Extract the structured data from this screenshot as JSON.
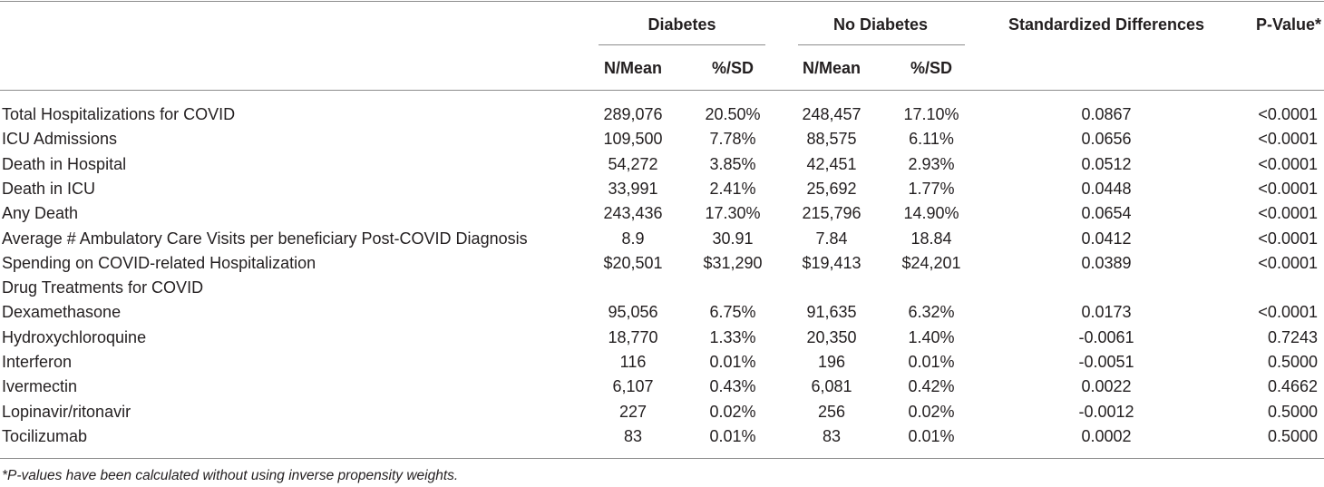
{
  "header": {
    "group_diabetes": "Diabetes",
    "group_no_diabetes": "No Diabetes",
    "std_diff": "Standardized Differences",
    "p_value": "P-Value*",
    "sub_n_mean": "N/Mean",
    "sub_pct_sd": "%/SD"
  },
  "rows": [
    {
      "label": "Total Hospitalizations for COVID",
      "d_n": "289,076",
      "d_pct": "20.50%",
      "nd_n": "248,457",
      "nd_pct": "17.10%",
      "std": "0.0867",
      "p": "<0.0001"
    },
    {
      "label": "ICU Admissions",
      "d_n": "109,500",
      "d_pct": "7.78%",
      "nd_n": "88,575",
      "nd_pct": "6.11%",
      "std": "0.0656",
      "p": "<0.0001"
    },
    {
      "label": "Death in Hospital",
      "d_n": "54,272",
      "d_pct": "3.85%",
      "nd_n": "42,451",
      "nd_pct": "2.93%",
      "std": "0.0512",
      "p": "<0.0001"
    },
    {
      "label": "Death in ICU",
      "d_n": "33,991",
      "d_pct": "2.41%",
      "nd_n": "25,692",
      "nd_pct": "1.77%",
      "std": "0.0448",
      "p": "<0.0001"
    },
    {
      "label": "Any Death",
      "d_n": "243,436",
      "d_pct": "17.30%",
      "nd_n": "215,796",
      "nd_pct": "14.90%",
      "std": "0.0654",
      "p": "<0.0001"
    },
    {
      "label": "Average # Ambulatory Care Visits per beneficiary Post-COVID Diagnosis",
      "d_n": "8.9",
      "d_pct": "30.91",
      "nd_n": "7.84",
      "nd_pct": "18.84",
      "std": "0.0412",
      "p": "<0.0001"
    },
    {
      "label": "Spending on COVID-related Hospitalization",
      "d_n": "$20,501",
      "d_pct": "$31,290",
      "nd_n": "$19,413",
      "nd_pct": "$24,201",
      "std": "0.0389",
      "p": "<0.0001"
    },
    {
      "label": "Drug Treatments for COVID",
      "d_n": "",
      "d_pct": "",
      "nd_n": "",
      "nd_pct": "",
      "std": "",
      "p": ""
    },
    {
      "label": "Dexamethasone",
      "d_n": "95,056",
      "d_pct": "6.75%",
      "nd_n": "91,635",
      "nd_pct": "6.32%",
      "std": "0.0173",
      "p": "<0.0001"
    },
    {
      "label": "Hydroxychloroquine",
      "d_n": "18,770",
      "d_pct": "1.33%",
      "nd_n": "20,350",
      "nd_pct": "1.40%",
      "std": "-0.0061",
      "p": "0.7243"
    },
    {
      "label": "Interferon",
      "d_n": "116",
      "d_pct": "0.01%",
      "nd_n": "196",
      "nd_pct": "0.01%",
      "std": "-0.0051",
      "p": "0.5000"
    },
    {
      "label": "Ivermectin",
      "d_n": "6,107",
      "d_pct": "0.43%",
      "nd_n": "6,081",
      "nd_pct": "0.42%",
      "std": "0.0022",
      "p": "0.4662"
    },
    {
      "label": "Lopinavir/ritonavir",
      "d_n": "227",
      "d_pct": "0.02%",
      "nd_n": "256",
      "nd_pct": "0.02%",
      "std": "-0.0012",
      "p": "0.5000"
    },
    {
      "label": "Tocilizumab",
      "d_n": "83",
      "d_pct": "0.01%",
      "nd_n": "83",
      "nd_pct": "0.01%",
      "std": "0.0002",
      "p": "0.5000"
    }
  ],
  "footnote": "*P-values have been calculated without using inverse propensity weights."
}
